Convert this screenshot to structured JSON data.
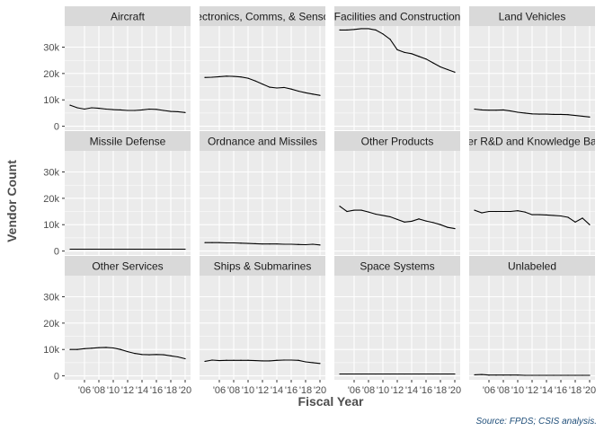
{
  "chart_data": {
    "type": "line",
    "xlabel": "Fiscal Year",
    "ylabel": "Vendor Count",
    "caption": "Source: FPDS; CSIS analysis.",
    "x": [
      2004,
      2005,
      2006,
      2007,
      2008,
      2009,
      2010,
      2011,
      2012,
      2013,
      2014,
      2015,
      2016,
      2017,
      2018,
      2019,
      2020
    ],
    "x_ticks": [
      "'06",
      "'08",
      "'10",
      "'12",
      "'14",
      "'16",
      "'18",
      "'20"
    ],
    "x_tick_values": [
      2006,
      2008,
      2010,
      2012,
      2014,
      2016,
      2018,
      2020
    ],
    "ylim": [
      -1500,
      38000
    ],
    "y_ticks": [
      "0",
      "10k",
      "20k",
      "30k"
    ],
    "y_tick_values": [
      0,
      10000,
      20000,
      30000
    ],
    "grid": true,
    "colors": {
      "line": "#000000",
      "panel": "#ebebeb",
      "strip": "#d9d9d9",
      "grid": "#ffffff",
      "caption": "#1f4e79"
    },
    "series": [
      {
        "name": "Aircraft",
        "values": [
          8000,
          7000,
          6500,
          7000,
          6800,
          6500,
          6300,
          6200,
          6000,
          6000,
          6200,
          6500,
          6400,
          6000,
          5600,
          5500,
          5200
        ]
      },
      {
        "name": "Electronics, Comms, & Sensors",
        "values": [
          18500,
          18600,
          18800,
          19000,
          18900,
          18700,
          18200,
          17200,
          16000,
          14800,
          14500,
          14700,
          14100,
          13300,
          12700,
          12200,
          11700
        ]
      },
      {
        "name": "Facilities and Construction",
        "values": [
          36500,
          36500,
          36700,
          37000,
          37000,
          36500,
          35000,
          33000,
          29000,
          28000,
          27500,
          26500,
          25500,
          24000,
          22500,
          21500,
          20500
        ]
      },
      {
        "name": "Land Vehicles",
        "values": [
          6500,
          6200,
          6100,
          6100,
          6200,
          5800,
          5300,
          5000,
          4700,
          4600,
          4600,
          4500,
          4500,
          4400,
          4100,
          3800,
          3500
        ]
      },
      {
        "name": "Missile Defense",
        "values": [
          700,
          700,
          700,
          700,
          700,
          700,
          700,
          700,
          700,
          700,
          700,
          700,
          700,
          700,
          700,
          700,
          700
        ]
      },
      {
        "name": "Ordnance and Missiles",
        "values": [
          3200,
          3200,
          3200,
          3100,
          3100,
          3000,
          2900,
          2800,
          2700,
          2700,
          2700,
          2600,
          2600,
          2500,
          2400,
          2600,
          2300
        ]
      },
      {
        "name": "Other Products",
        "values": [
          17000,
          15000,
          15500,
          15500,
          14800,
          14000,
          13500,
          13000,
          12000,
          11000,
          11300,
          12200,
          11400,
          10800,
          10000,
          9000,
          8500
        ]
      },
      {
        "name": "Other R&D and Knowledge Based",
        "values": [
          15500,
          14500,
          15000,
          15000,
          15000,
          15000,
          15300,
          14800,
          13800,
          13800,
          13700,
          13500,
          13300,
          12800,
          11000,
          12500,
          10000
        ]
      },
      {
        "name": "Other Services",
        "values": [
          10000,
          10000,
          10300,
          10500,
          10700,
          10800,
          10600,
          10000,
          9200,
          8500,
          8100,
          8000,
          8100,
          8000,
          7600,
          7200,
          6500
        ]
      },
      {
        "name": "Ships & Submarines",
        "values": [
          5500,
          6000,
          5800,
          5900,
          5900,
          5900,
          5900,
          5800,
          5700,
          5700,
          5900,
          6000,
          6000,
          5900,
          5300,
          5000,
          4700
        ]
      },
      {
        "name": "Space Systems",
        "values": [
          700,
          700,
          700,
          700,
          700,
          700,
          700,
          700,
          700,
          700,
          700,
          700,
          700,
          700,
          700,
          700,
          700
        ]
      },
      {
        "name": "Unlabeled",
        "values": [
          400,
          500,
          300,
          300,
          300,
          300,
          300,
          200,
          200,
          200,
          200,
          200,
          200,
          200,
          200,
          200,
          200
        ]
      }
    ]
  }
}
